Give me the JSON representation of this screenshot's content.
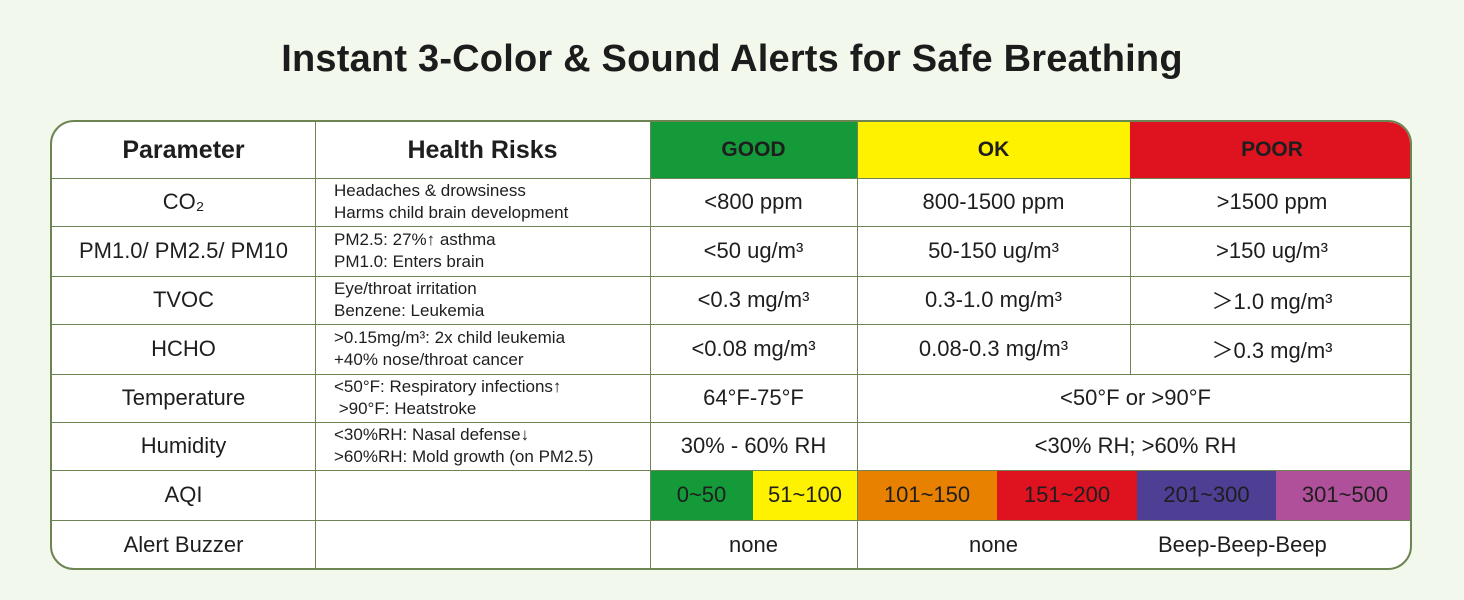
{
  "title": "Instant 3-Color & Sound Alerts for Safe Breathing",
  "header": {
    "parameter": "Parameter",
    "health_risks": "Health Risks",
    "good": "GOOD",
    "ok": "OK",
    "poor": "POOR"
  },
  "colors": {
    "good": "#159a3a",
    "ok": "#fff200",
    "poor": "#df1220",
    "aqi_orange": "#e88000",
    "aqi_red": "#df1220",
    "aqi_purple": "#4e3f95",
    "aqi_magenta": "#b0509a",
    "border": "#6d8453"
  },
  "rows": [
    {
      "param": "CO₂",
      "risk": "Headaches & drowsiness\nHarms child brain development",
      "good": "<800 ppm",
      "ok": "800-1500 ppm",
      "poor": ">1500 ppm"
    },
    {
      "param": "PM1.0/ PM2.5/ PM10",
      "risk": "PM2.5: 27%↑ asthma\nPM1.0: Enters brain",
      "good": "<50 ug/m³",
      "ok": "50-150 ug/m³",
      "poor": ">150 ug/m³"
    },
    {
      "param": "TVOC",
      "risk": "Eye/throat irritation\nBenzene: Leukemia",
      "good": "<0.3 mg/m³",
      "ok": "0.3-1.0 mg/m³",
      "poor": "＞1.0 mg/m³"
    },
    {
      "param": "HCHO",
      "risk": ">0.15mg/m³: 2x child leukemia\n+40% nose/throat cancer",
      "good": "<0.08 mg/m³",
      "ok": "0.08-0.3 mg/m³",
      "poor": "＞0.3 mg/m³"
    },
    {
      "param": "Temperature",
      "risk": "<50°F: Respiratory infections↑\n >90°F: Heatstroke",
      "good": "64°F-75°F",
      "ok_poor": "<50°F or >90°F"
    },
    {
      "param": "Humidity",
      "risk": "<30%RH: Nasal defense↓\n>60%RH: Mold growth (on PM2.5)",
      "good": "30% - 60% RH",
      "ok_poor": "<30% RH; >60% RH"
    }
  ],
  "aqi": {
    "label": "AQI",
    "ranges": [
      "0~50",
      "51~100",
      "101~150",
      "151~200",
      "201~300",
      "301~500"
    ]
  },
  "buzzer": {
    "label": "Alert Buzzer",
    "good": "none",
    "ok": "none",
    "poor": "Beep-Beep-Beep"
  }
}
